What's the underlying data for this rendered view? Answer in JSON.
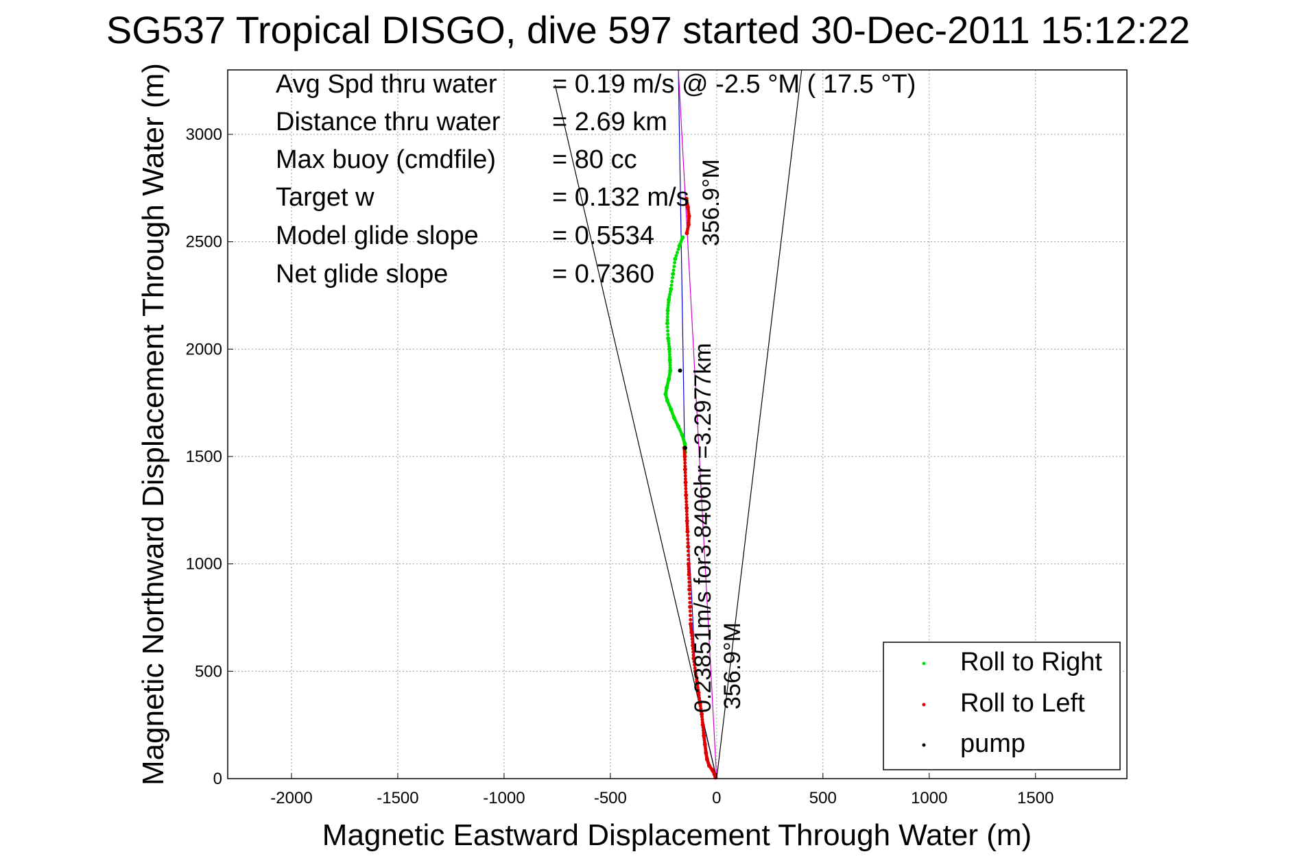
{
  "chart_data": {
    "type": "scatter",
    "title": "SG537 Tropical DISGO, dive 597 started 30-Dec-2011 15:12:22",
    "xlabel": "Magnetic Eastward Displacement Through Water (m)",
    "ylabel": "Magnetic Northward Displacement Through Water (m)",
    "xlim": [
      -2300,
      1930
    ],
    "ylim": [
      0,
      3300
    ],
    "xticks": [
      -2000,
      -1500,
      -1000,
      -500,
      0,
      500,
      1000,
      1500
    ],
    "yticks": [
      0,
      500,
      1000,
      1500,
      2000,
      2500,
      3000
    ],
    "grid": true,
    "legend_position": "bottom-right",
    "stats": [
      {
        "label": "Avg Spd thru water",
        "value": "=  0.19 m/s @  -2.5 °M ( 17.5 °T)"
      },
      {
        "label": "Distance thru water",
        "value": "=  2.69 km"
      },
      {
        "label": "Max buoy (cmdfile)",
        "value": "= 80 cc"
      },
      {
        "label": "Target w",
        "value": "= 0.132 m/s"
      },
      {
        "label": "Model glide slope",
        "value": "= 0.5534"
      },
      {
        "label": "Net glide slope",
        "value": "= 0.7360"
      }
    ],
    "annotations": {
      "heading_top": "356.9°M",
      "heading_bottom": "356.9°M",
      "speed_text": "0.23851m/s for3.8406hr =3.2977km"
    },
    "legend": [
      {
        "label": "Roll to Right",
        "color": "#00dd00"
      },
      {
        "label": "Roll to Left",
        "color": "#dd0000"
      },
      {
        "label": "pump",
        "color": "#000000"
      }
    ],
    "series": [
      {
        "name": "Roll to Right",
        "color": "#00dd00",
        "x": [
          -160,
          -175,
          -195,
          -205,
          -215,
          -225,
          -230,
          -232,
          -228,
          -222,
          -220,
          -218,
          -225,
          -235,
          -240,
          -232,
          -215,
          -200,
          -180,
          -162,
          -150,
          -148
        ],
        "y": [
          2520,
          2480,
          2420,
          2350,
          2280,
          2230,
          2180,
          2120,
          2050,
          2000,
          1950,
          1900,
          1860,
          1820,
          1790,
          1760,
          1720,
          1680,
          1640,
          1600,
          1560,
          1520
        ]
      },
      {
        "name": "Roll to Left",
        "color": "#dd0000",
        "x": [
          -5,
          -10,
          -20,
          -35,
          -45,
          -50,
          -55,
          -60,
          -65,
          -70,
          -78,
          -85,
          -92,
          -100,
          -108,
          -112,
          -118,
          -122,
          -125,
          -128,
          -130,
          -132,
          -134,
          -137,
          -139,
          -141,
          -144,
          -146,
          -148,
          -150,
          -152,
          -140,
          -132,
          -130,
          -135,
          -142
        ],
        "y": [
          5,
          20,
          40,
          60,
          90,
          120,
          160,
          200,
          250,
          300,
          350,
          400,
          450,
          500,
          560,
          620,
          680,
          720,
          800,
          880,
          950,
          1000,
          1080,
          1150,
          1200,
          1260,
          1320,
          1380,
          1440,
          1500,
          1540,
          2540,
          2580,
          2620,
          2660,
          2700
        ]
      },
      {
        "name": "pump",
        "color": "#000000",
        "x": [
          -148,
          -172
        ],
        "y": [
          1540,
          1900
        ]
      }
    ],
    "lines": [
      {
        "name": "track",
        "color": "#0000cc",
        "x": [
          0,
          -60,
          -100,
          -120,
          -138,
          -150,
          -180
        ],
        "y": [
          0,
          250,
          500,
          900,
          1200,
          1500,
          3300
        ]
      },
      {
        "name": "heading",
        "color": "#cc00cc",
        "x": [
          0,
          -125,
          -180
        ],
        "y": [
          0,
          2300,
          3300
        ]
      },
      {
        "name": "cone-left",
        "color": "#000000",
        "x": [
          0,
          -760
        ],
        "y": [
          0,
          3230
        ]
      },
      {
        "name": "cone-right",
        "color": "#000000",
        "x": [
          0,
          400
        ],
        "y": [
          0,
          3300
        ]
      }
    ]
  }
}
